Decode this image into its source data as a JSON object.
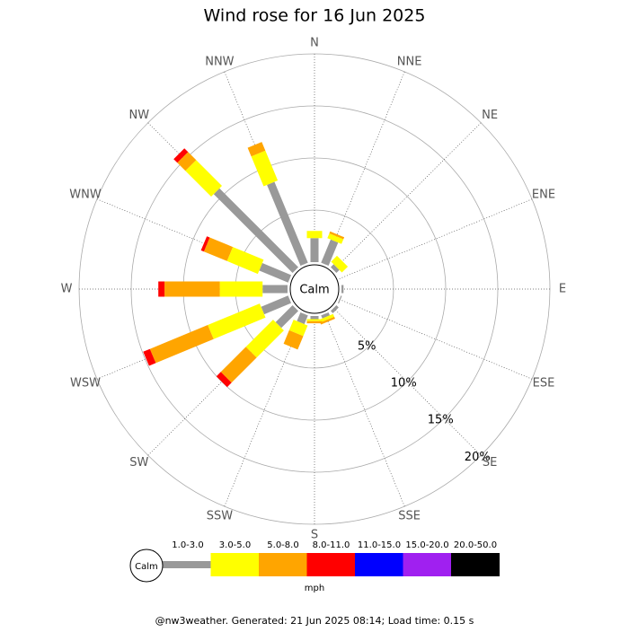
{
  "chart_data": {
    "type": "windrose",
    "title": "Wind rose for 16 Jun 2025",
    "categories": [
      "N",
      "NNE",
      "NE",
      "ENE",
      "E",
      "ESE",
      "SE",
      "SSE",
      "S",
      "SSW",
      "SW",
      "WSW",
      "W",
      "WNW",
      "NW",
      "NNW"
    ],
    "series": [
      {
        "name": "1.0-3.0",
        "color": "#999999",
        "values": [
          2.3,
          2.4,
          0.4,
          0,
          0.2,
          0.1,
          0.3,
          0.3,
          0.3,
          0.9,
          2.3,
          2.8,
          2.4,
          3.0,
          10.7,
          8.4
        ]
      },
      {
        "name": "3.0-5.0",
        "color": "#ffff00",
        "values": [
          0.7,
          0.5,
          0.8,
          0,
          0,
          0,
          0,
          0.3,
          0.2,
          1.1,
          3.7,
          5.4,
          4.1,
          3.2,
          3.5,
          3.1
        ]
      },
      {
        "name": "5.0-8.0",
        "color": "#ffa500",
        "values": [
          0,
          0.2,
          0,
          0,
          0,
          0,
          0,
          0.2,
          0.2,
          1.4,
          3.4,
          6.0,
          5.3,
          2.4,
          1.1,
          0.9
        ]
      },
      {
        "name": "8.0-11.0",
        "color": "#ff0000",
        "values": [
          0,
          0,
          0,
          0,
          0,
          0,
          0,
          0,
          0,
          0,
          0.6,
          0.7,
          0.6,
          0.3,
          0.5,
          0
        ]
      },
      {
        "name": "11.0-15.0",
        "color": "#0000ff",
        "values": [
          0,
          0,
          0,
          0,
          0,
          0,
          0,
          0,
          0,
          0,
          0,
          0,
          0,
          0,
          0,
          0
        ]
      },
      {
        "name": "15.0-20.0",
        "color": "#a020f0",
        "values": [
          0,
          0,
          0,
          0,
          0,
          0,
          0,
          0,
          0,
          0,
          0,
          0,
          0,
          0,
          0,
          0
        ]
      },
      {
        "name": "20.0-50.0",
        "color": "#000000",
        "values": [
          0,
          0,
          0,
          0,
          0,
          0,
          0,
          0,
          0,
          0,
          0,
          0,
          0,
          0,
          0,
          0
        ]
      }
    ],
    "rlim": [
      0,
      20
    ],
    "rticks": [
      {
        "value": 5,
        "label": "5%"
      },
      {
        "value": 10,
        "label": "10%"
      },
      {
        "value": 15,
        "label": "15%"
      },
      {
        "value": 20,
        "label": "20%"
      }
    ],
    "calm_label": "Calm",
    "legend_unit": "mph",
    "footer": "@nw3weather. Generated: 21 Jun 2025 08:14; Load time: 0.15 s"
  }
}
